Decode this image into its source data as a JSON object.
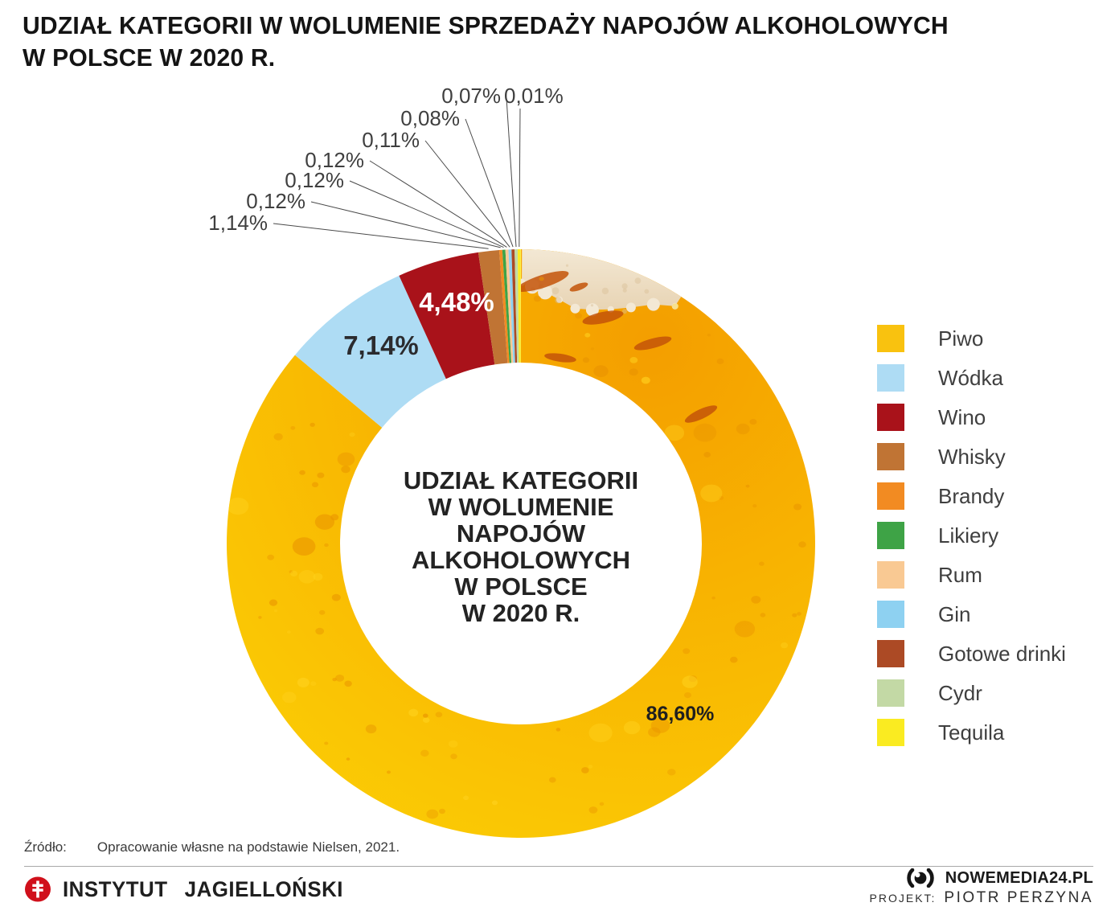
{
  "title": {
    "line1": "UDZIAŁ KATEGORII W WOLUMENIE SPRZEDAŻY NAPOJÓW ALKOHOLOWYCH",
    "line2": "W POLSCE W 2020 R."
  },
  "chart_data": {
    "type": "pie",
    "donut": true,
    "title": "UDZIAŁ KATEGORII W WOLUMENIE NAPOJÓW ALKOHOLOWYCH W POLSCE W 2020 R.",
    "center_label_lines": [
      "UDZIAŁ KATEGORII",
      "W WOLUMENIE",
      "NAPOJÓW",
      "ALKOHOLOWYCH",
      "W POLSCE",
      "W 2020 R."
    ],
    "unit": "%",
    "categories": [
      "Piwo",
      "Wódka",
      "Wino",
      "Whisky",
      "Brandy",
      "Likiery",
      "Rum",
      "Gin",
      "Gotowe drinki",
      "Cydr",
      "Tequila"
    ],
    "values": [
      86.6,
      7.14,
      4.48,
      1.14,
      0.12,
      0.12,
      0.12,
      0.11,
      0.08,
      0.07,
      0.01
    ],
    "labels": [
      "86,60%",
      "7,14%",
      "4,48%",
      "1,14%",
      "0,12%",
      "0,12%",
      "0,12%",
      "0,11%",
      "0,08%",
      "0,07%",
      "0,01%"
    ],
    "colors": [
      "#F9C20F",
      "#AEDCF4",
      "#A9121A",
      "#C07434",
      "#F28B22",
      "#3EA346",
      "#F9C993",
      "#8ED1F1",
      "#AC4A25",
      "#C3D9A5",
      "#FAEB21"
    ],
    "inner_label_colors": [
      "#1f1f1f",
      "#2b2b2e",
      "#ffffff"
    ],
    "texture_colors": {
      "beer_deep": "#F49E00",
      "beer_mid": "#F8B301",
      "beer_light": "#FBCB05",
      "foam_light": "#F3E8D4",
      "foam_dark": "#E8D4B4",
      "droplet": "#E99400",
      "streak": "#C35308"
    },
    "legend_position": "right",
    "grid": false
  },
  "source": {
    "label": "Źródło:",
    "text": "Opracowanie własne na podstawie Nielsen, 2021."
  },
  "footer": {
    "institute": "INSTYTUT JAGIELLOŃSKI",
    "site": "NOWEMEDIA24.PL",
    "project_label": "PROJEKT:",
    "project_name": "PIOTR PERZYNA"
  }
}
